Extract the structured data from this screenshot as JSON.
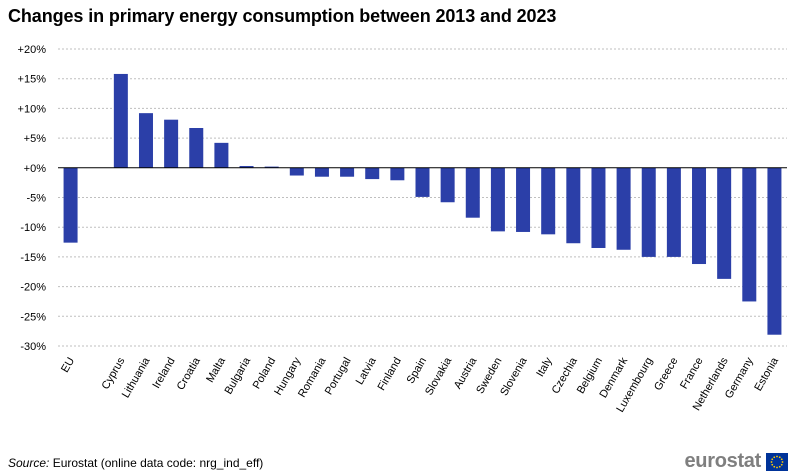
{
  "chart_data": {
    "type": "bar",
    "title": "Changes in primary energy consumption between 2013 and 2023",
    "xlabel": "",
    "ylabel": "",
    "ylim": [
      -30,
      20
    ],
    "yticks": [
      20,
      15,
      10,
      5,
      0,
      -5,
      -10,
      -15,
      -20,
      -25,
      -30
    ],
    "ytick_labels": [
      "+20%",
      "+15%",
      "+10%",
      "+5%",
      "+0%",
      "-5%",
      "-10%",
      "-15%",
      "-20%",
      "-25%",
      "-30%"
    ],
    "grid": true,
    "bar_color": "#2B3FA8",
    "categories": [
      "EU",
      "",
      "Cyprus",
      "Lithuania",
      "Ireland",
      "Croatia",
      "Malta",
      "Bulgaria",
      "Poland",
      "Hungary",
      "Romania",
      "Portugal",
      "Latvia",
      "Finland",
      "Spain",
      "Slovakia",
      "Austria",
      "Sweden",
      "Slovenia",
      "Italy",
      "Czechia",
      "Belgium",
      "Denmark",
      "Luxembourg",
      "Greece",
      "France",
      "Netherlands",
      "Germany",
      "Estonia"
    ],
    "values": [
      -12.6,
      null,
      15.8,
      9.2,
      8.1,
      6.7,
      4.2,
      0.3,
      0.2,
      -1.3,
      -1.5,
      -1.5,
      -1.9,
      -2.1,
      -4.9,
      -5.8,
      -8.4,
      -10.7,
      -10.8,
      -11.2,
      -12.7,
      -13.5,
      -13.8,
      -15.0,
      -15.0,
      -16.2,
      -18.7,
      -22.5,
      -28.1
    ]
  },
  "footer": {
    "source_label": "Source:",
    "source_text": "Eurostat (online data code: nrg_ind_eff)",
    "logo_text": "eurostat"
  },
  "colors": {
    "grid": "#bfbfbf",
    "axis": "#000000",
    "logo_flag": "#003399",
    "logo_stars": "#FFCC00"
  }
}
